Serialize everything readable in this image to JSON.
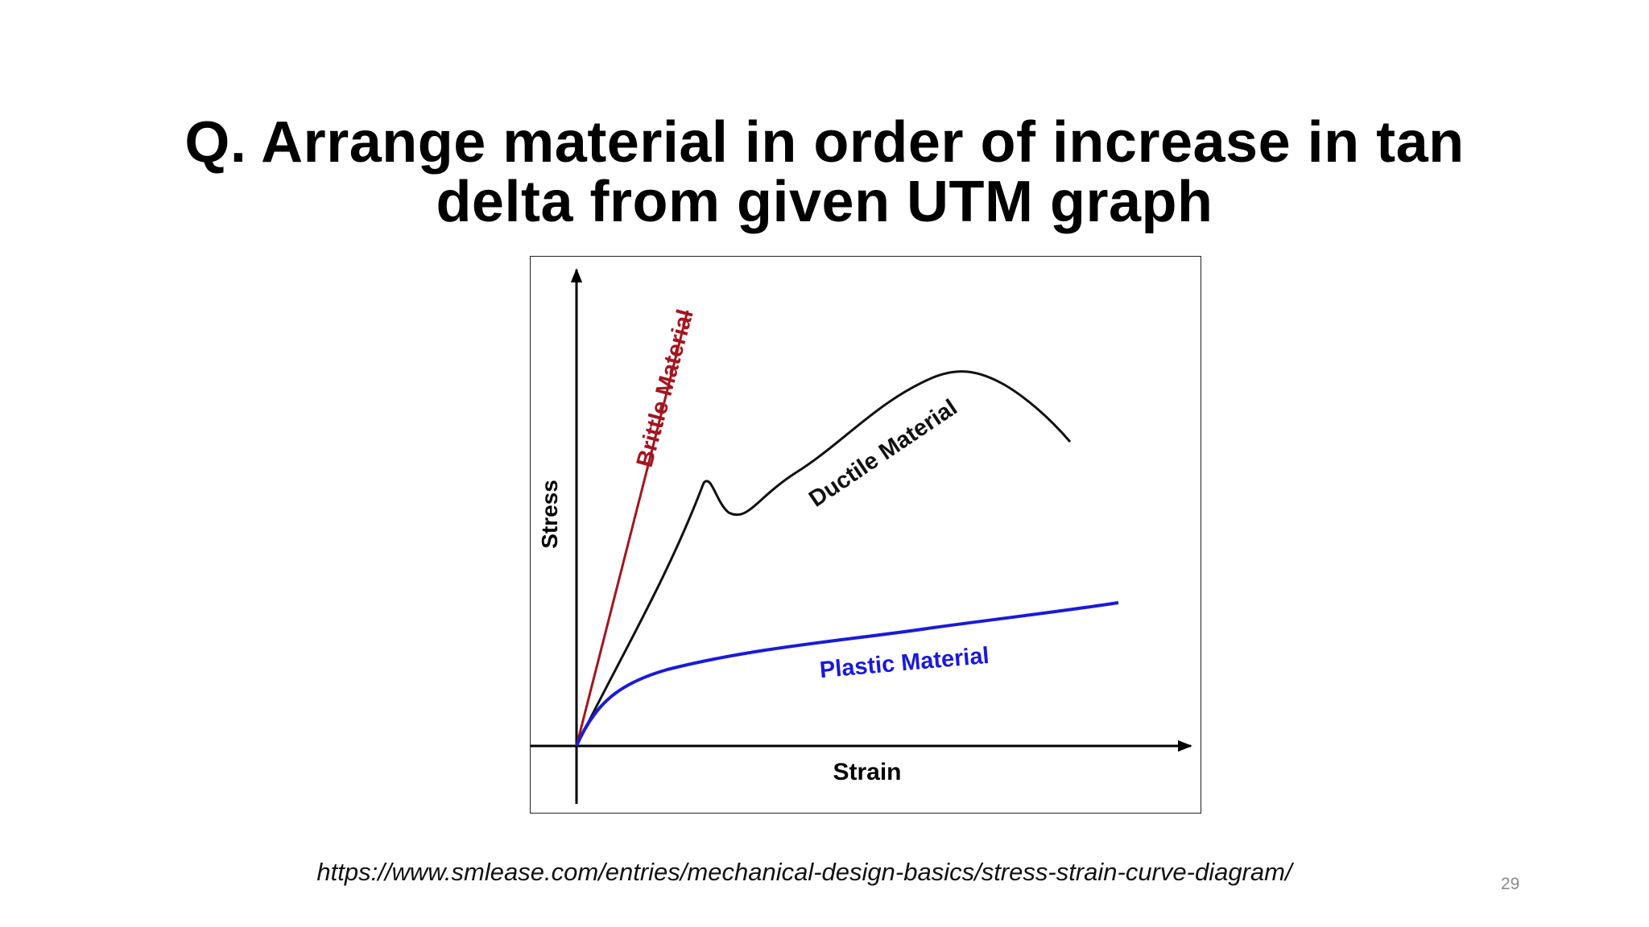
{
  "slide": {
    "title_line1": "Q. Arrange material in order of increase in tan",
    "title_line2": "delta from given UTM graph",
    "source_url": "https://www.smlease.com/entries/mechanical-design-basics/stress-strain-curve-diagram/",
    "page_number": "29"
  },
  "diagram": {
    "y_axis_label": "Stress",
    "x_axis_label": "Strain",
    "curves": {
      "brittle": {
        "label": "Brittle Material",
        "color": "#a3151f"
      },
      "ductile": {
        "label": "Ductile Material",
        "color": "#111111"
      },
      "plastic": {
        "label": "Plastic Material",
        "color": "#1a1adb"
      }
    }
  }
}
